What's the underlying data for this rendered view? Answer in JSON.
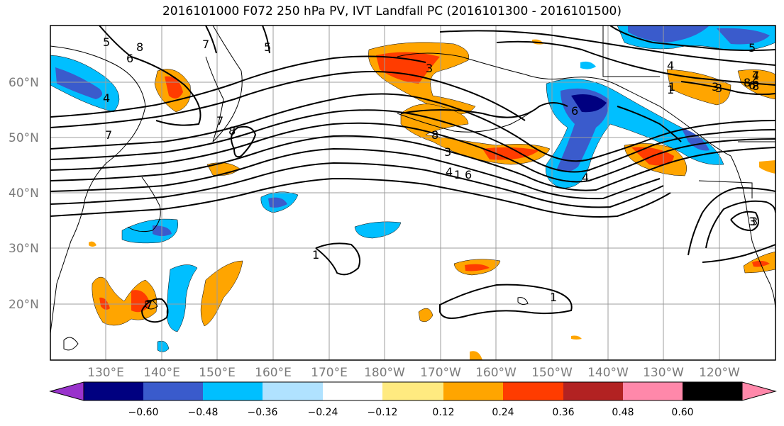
{
  "title": "2016101000 F072 250 hPa PV, IVT Landfall PC (2016101300 - 2016101500)",
  "lat_labels": [
    "60°N",
    "50°N",
    "40°N",
    "30°N",
    "20°N"
  ],
  "lon_labels": [
    "130°E",
    "140°E",
    "150°E",
    "160°E",
    "170°E",
    "180°W",
    "170°W",
    "160°W",
    "150°W",
    "140°W",
    "130°W",
    "120°W"
  ],
  "colorbar": {
    "ticks": [
      "−0.60",
      "−0.48",
      "−0.36",
      "−0.24",
      "−0.12",
      "0.12",
      "0.24",
      "0.36",
      "0.48",
      "0.60"
    ],
    "colors": [
      "#9933cc",
      "#000080",
      "#3a5bcc",
      "#00bfff",
      "#b0e2ff",
      "#ffffff",
      "#ffea80",
      "#ffa500",
      "#ff3c00",
      "#b22222",
      "#ff88aa"
    ]
  },
  "contour_labels": [
    "5",
    "6",
    "8",
    "7",
    "5",
    "3",
    "4",
    "7",
    "8",
    "6",
    "3",
    "1",
    "4",
    "7",
    "8",
    "6",
    "5",
    "4",
    "1",
    "1",
    "3",
    "8",
    "3",
    "7",
    "8",
    "6",
    "4",
    "3",
    "4",
    "7",
    "1",
    "1",
    "6",
    "3"
  ]
}
